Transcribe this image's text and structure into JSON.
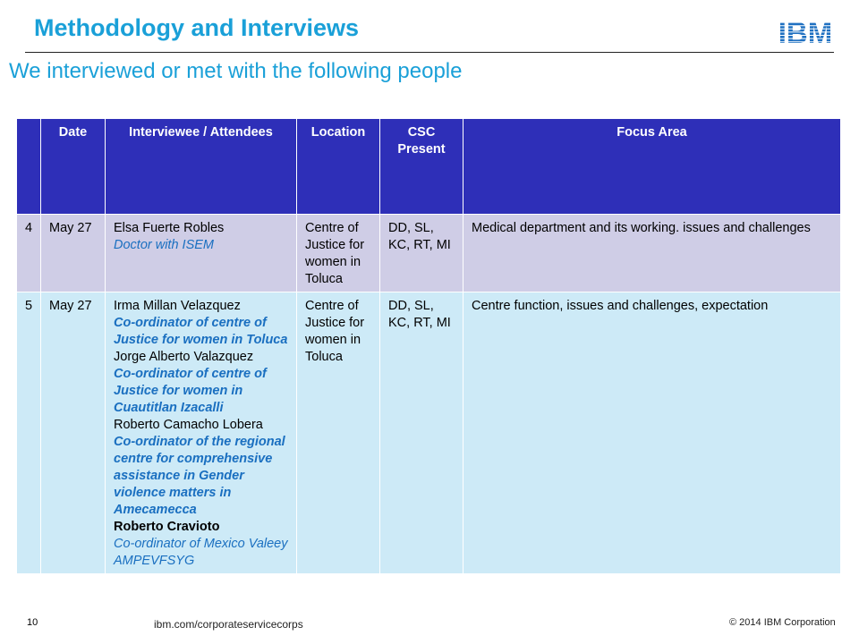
{
  "slide": {
    "title": "Methodology and Interviews",
    "subtitle": "We interviewed or met with the following people",
    "logo": "IBM",
    "page_number": "10",
    "url": "ibm.com/corporateservicecorps",
    "copyright": "© 2014 IBM Corporation"
  },
  "table": {
    "headers": {
      "num": "",
      "date": "Date",
      "interviewee": "Interviewee / Attendees",
      "location": "Location",
      "csc_line1": "CSC",
      "csc_line2": "Present",
      "focus": "Focus Area"
    },
    "rows": [
      {
        "num": "4",
        "date": "May 27",
        "people": [
          {
            "name": "Elsa Fuerte Robles",
            "role": "Doctor with ISEM"
          }
        ],
        "location": "Centre of Justice for women in Toluca",
        "csc": "DD, SL, KC, RT, MI",
        "focus": "Medical department and its working. issues and challenges"
      },
      {
        "num": "5",
        "date": "May 27",
        "people": [
          {
            "name": "Irma Millan Velazquez",
            "role": "Co-ordinator of centre of Justice for women in Toluca"
          },
          {
            "name": "Jorge Alberto Valazquez",
            "role": "Co-ordinator of centre of Justice for women in Cuautitlan Izacalli"
          },
          {
            "name": "Roberto Camacho Lobera",
            "role": "Co-ordinator of the regional centre for comprehensive assistance in Gender violence matters in Amecamecca"
          },
          {
            "name": "Roberto Cravioto",
            "role": "Co-ordinator of Mexico Valeey AMPEVFSYG"
          }
        ],
        "location": "Centre of Justice for women in Toluca",
        "csc": "DD, SL, KC, RT, MI",
        "focus": "Centre function, issues and challenges, expectation"
      }
    ]
  },
  "colors": {
    "title": "#1aa0d8",
    "header_bg": "#2e2fb8",
    "row4_bg": "#cfcde6",
    "row5_bg": "#cdeaf7",
    "role_text": "#1a6fc0"
  }
}
